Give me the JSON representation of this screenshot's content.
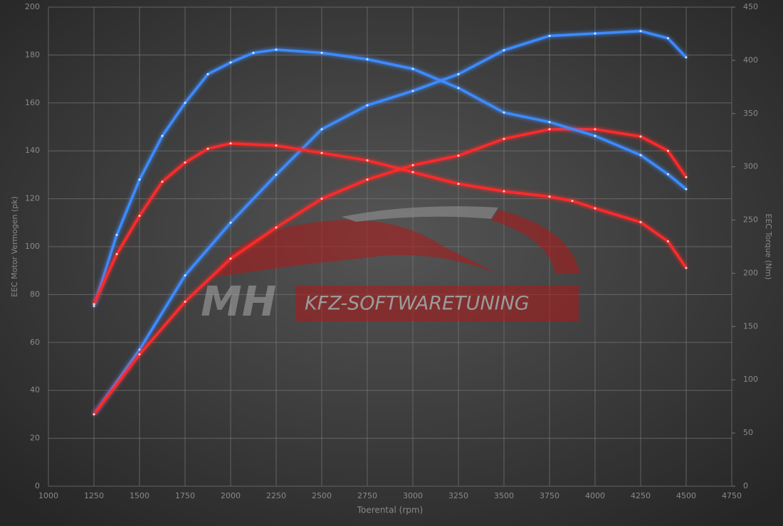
{
  "chart_data": {
    "type": "line",
    "xlabel": "Toerental (rpm)",
    "ylabel": "EEC Motor Vermogen (pk)",
    "y2label": "EEC Torque (Nm)",
    "watermark": {
      "logo": "MH",
      "text": "KFZ-SOFTWARETUNING"
    },
    "xlim": [
      1000,
      4750
    ],
    "xticks": [
      1000,
      1250,
      1500,
      1750,
      2000,
      2250,
      2500,
      2750,
      3000,
      3250,
      3500,
      3750,
      4000,
      4250,
      4500,
      4750
    ],
    "ylim": [
      0,
      200
    ],
    "yticks": [
      0,
      20,
      40,
      60,
      80,
      100,
      120,
      140,
      160,
      180,
      200
    ],
    "y2lim": [
      0,
      450
    ],
    "y2ticks": [
      0,
      50,
      100,
      150,
      200,
      250,
      300,
      350,
      400,
      450
    ],
    "grid": true,
    "series": [
      {
        "color": "#3d8bff",
        "axis": "y",
        "x": [
          1250,
          1500,
          1750,
          2000,
          2250,
          2500,
          2750,
          3000,
          3250,
          3500,
          3750,
          4000,
          4250,
          4400,
          4500
        ],
        "values": [
          30,
          57,
          88,
          110,
          130,
          149,
          159,
          165,
          172,
          182,
          188,
          189,
          190,
          187,
          179
        ]
      },
      {
        "color": "#ff2a2a",
        "axis": "y",
        "x": [
          1250,
          1500,
          1750,
          2000,
          2250,
          2500,
          2750,
          3000,
          3250,
          3500,
          3750,
          4000,
          4250,
          4400,
          4500
        ],
        "values": [
          30,
          55,
          77,
          95,
          108,
          120,
          128,
          134,
          138,
          145,
          149,
          149,
          146,
          140,
          129
        ]
      },
      {
        "color": "#3d8bff",
        "axis": "y2",
        "x": [
          1250,
          1375,
          1500,
          1625,
          1750,
          1875,
          2000,
          2125,
          2250,
          2500,
          2750,
          3000,
          3250,
          3500,
          3750,
          4000,
          4250,
          4400,
          4500
        ],
        "values": [
          169,
          236,
          288,
          329,
          360,
          387,
          398,
          407,
          410,
          407,
          401,
          392,
          374,
          351,
          342,
          329,
          311,
          293,
          279
        ]
      },
      {
        "color": "#ff2a2a",
        "axis": "y2",
        "x": [
          1250,
          1375,
          1500,
          1625,
          1750,
          1875,
          2000,
          2250,
          2500,
          2750,
          3000,
          3250,
          3500,
          3750,
          3875,
          4000,
          4250,
          4400,
          4500
        ],
        "values": [
          171,
          218,
          254,
          286,
          304,
          317,
          322,
          320,
          313,
          306,
          295,
          284,
          277,
          272,
          268,
          261,
          248,
          230,
          205
        ]
      }
    ]
  }
}
